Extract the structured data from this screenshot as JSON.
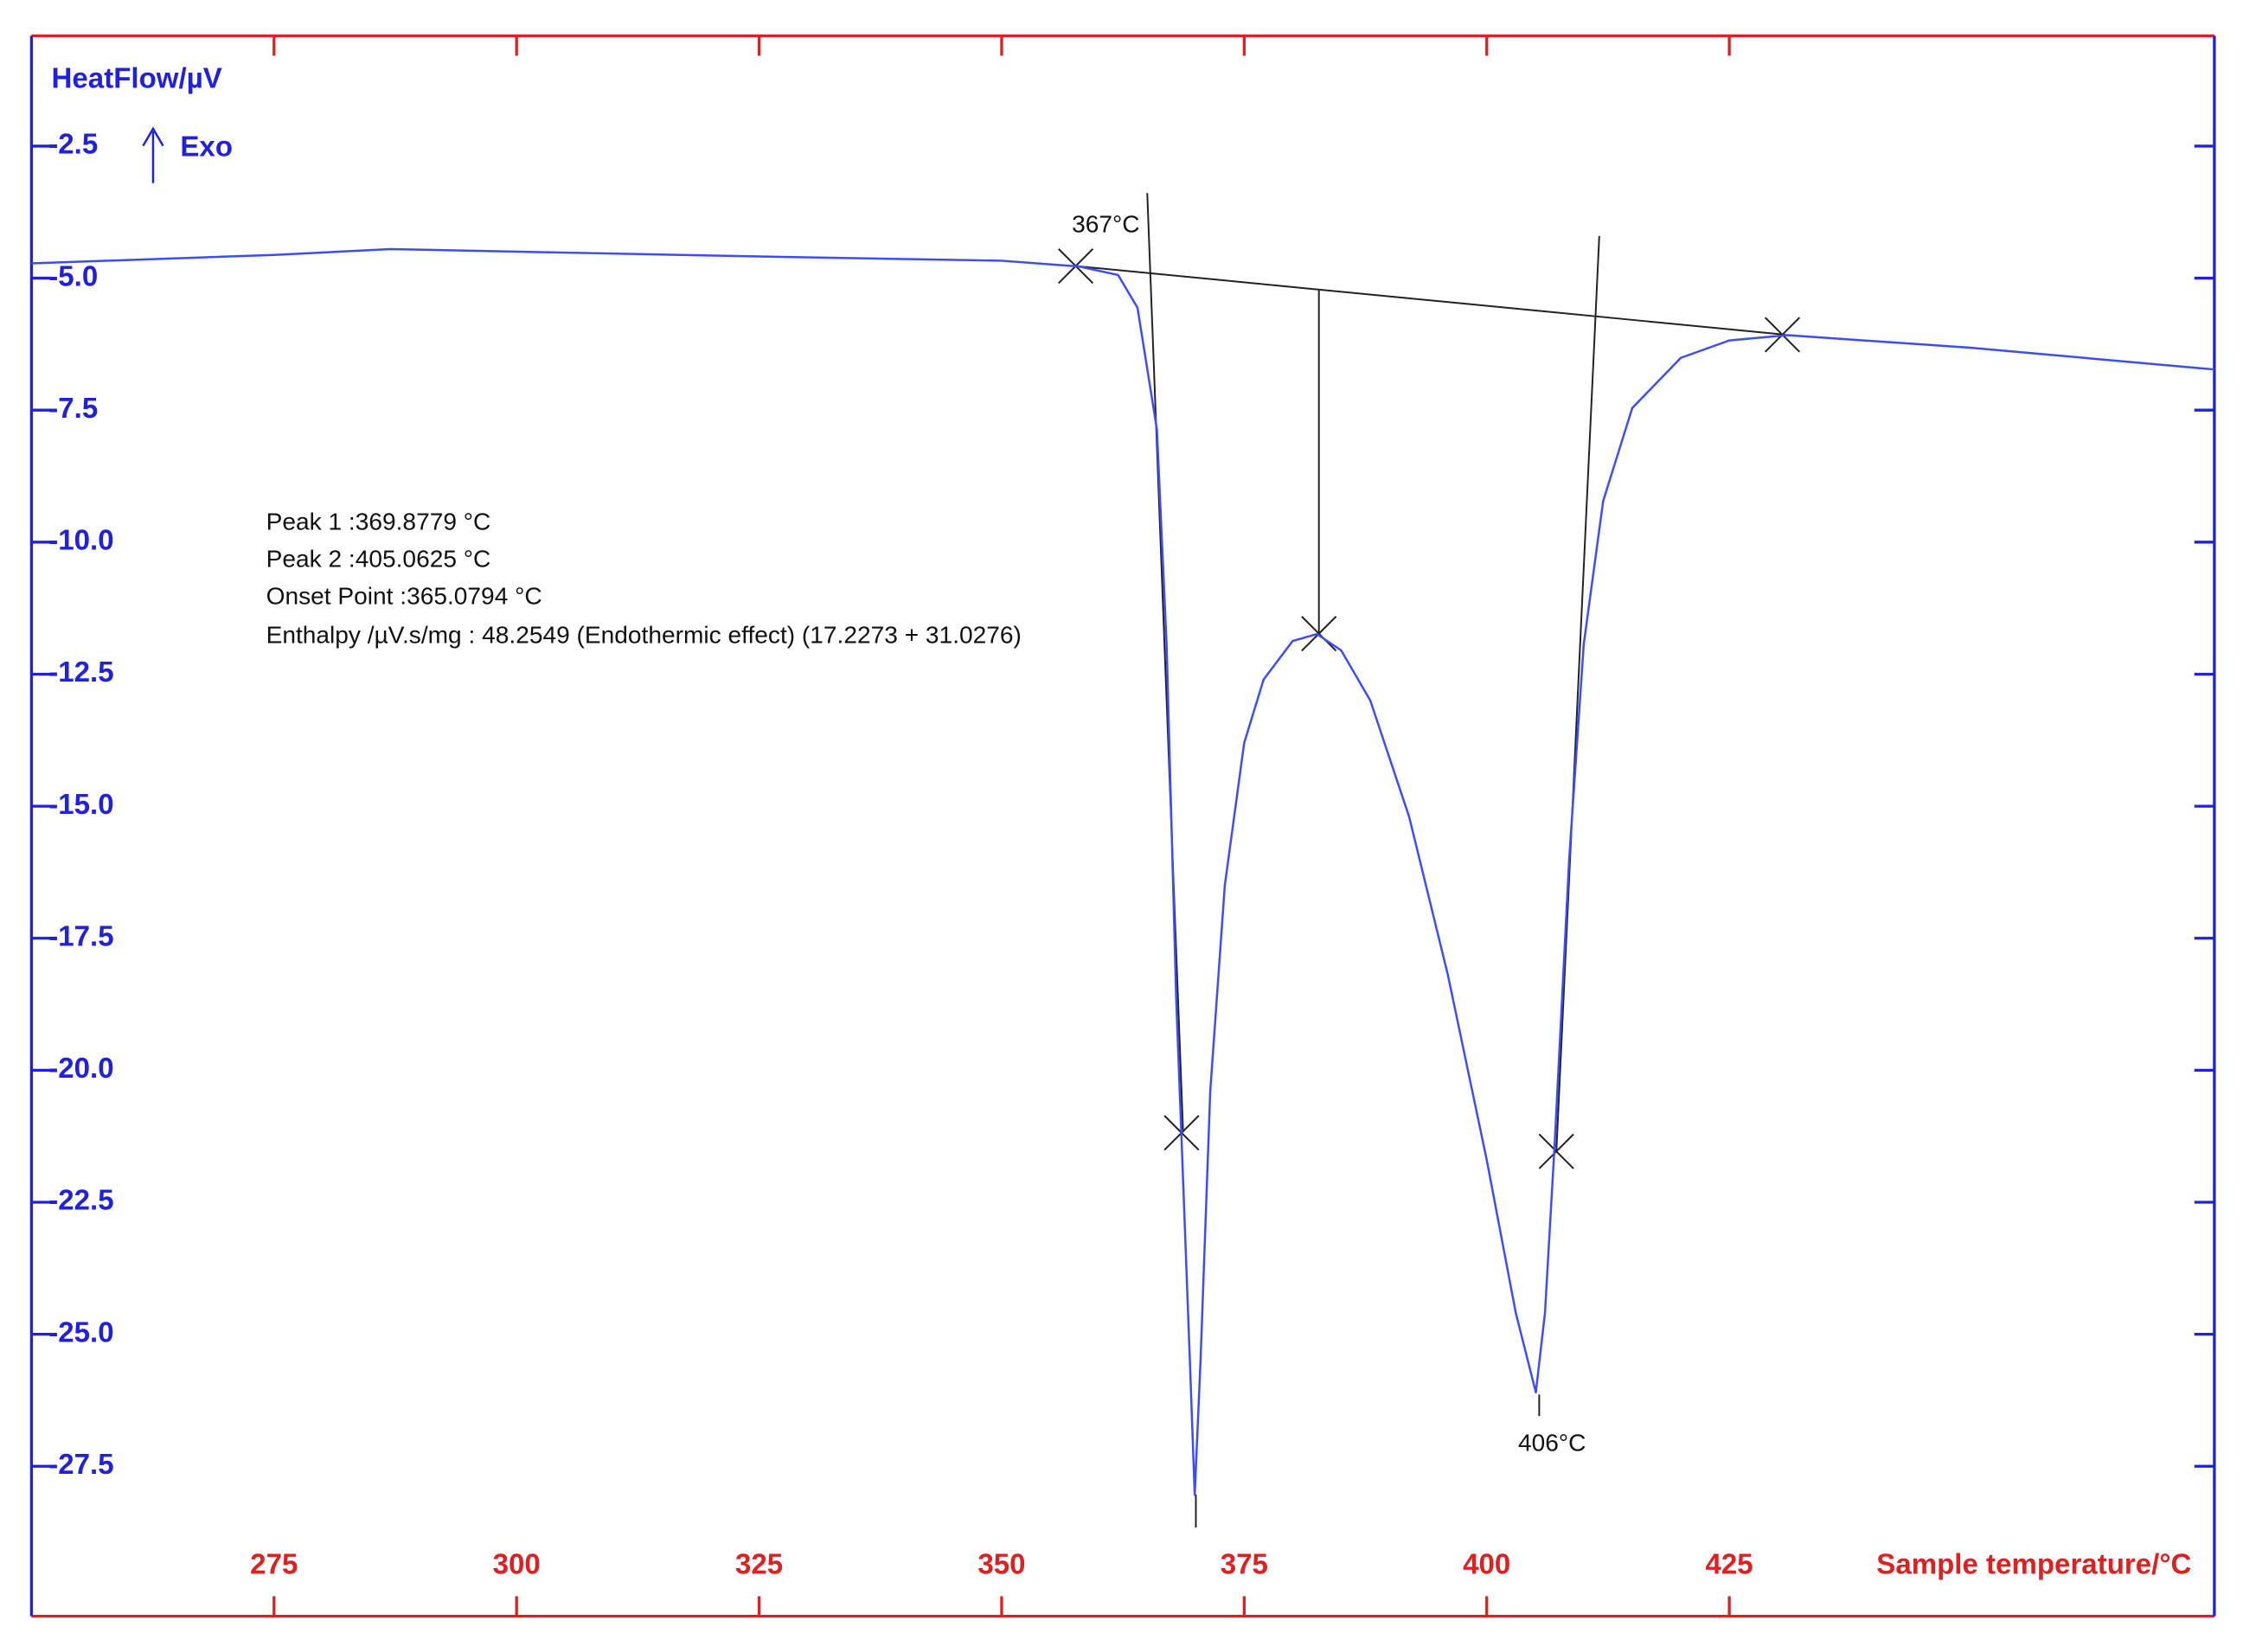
{
  "chart_data": {
    "type": "line",
    "ylabel": "HeatFlow/µV",
    "exo_label": "Exo",
    "xlabel": "Sample temperature/°C",
    "xlim": [
      250,
      475
    ],
    "ylim": [
      -30.34,
      -0.41
    ],
    "xticks": [
      275,
      300,
      325,
      350,
      375,
      400,
      425
    ],
    "yticks": [
      {
        "value": -2.5,
        "label": "-2.5"
      },
      {
        "value": -5,
        "label": "-5.0"
      },
      {
        "value": -7.5,
        "label": "-7.5"
      },
      {
        "value": -10,
        "label": "-10.0"
      },
      {
        "value": -12.5,
        "label": "-12.5"
      },
      {
        "value": -15,
        "label": "-15.0"
      },
      {
        "value": -17.5,
        "label": "-17.5"
      },
      {
        "value": -20,
        "label": "-20.0"
      },
      {
        "value": -22.5,
        "label": "-22.5"
      },
      {
        "value": -25,
        "label": "-25.0"
      },
      {
        "value": -27.5,
        "label": "-27.5"
      }
    ],
    "series": [
      {
        "color": "#3b4cff",
        "x": [
          250,
          275,
          287,
          325,
          350,
          358,
          362,
          364,
          366,
          367,
          368,
          368.5,
          369.4,
          369.9,
          370.5,
          371.5,
          373,
          375,
          377,
          380,
          382.5,
          385,
          388,
          392,
          396,
          400,
          403,
          405.06,
          406,
          407,
          408.5,
          410,
          412,
          415,
          420,
          425,
          431,
          450,
          475
        ],
        "values": [
          -4.72,
          -4.56,
          -4.45,
          -4.59,
          -4.67,
          -4.78,
          -4.94,
          -5.56,
          -7.86,
          -11.93,
          -18.7,
          -21.1,
          -25.5,
          -28.04,
          -25.5,
          -20.4,
          -16.5,
          -13.8,
          -12.6,
          -11.87,
          -11.74,
          -12.05,
          -13.0,
          -15.2,
          -18.2,
          -21.7,
          -24.6,
          -26.1,
          -24.6,
          -21.4,
          -15.99,
          -11.93,
          -9.22,
          -7.46,
          -6.51,
          -6.18,
          -6.08,
          -6.32,
          -6.73
        ]
      }
    ],
    "annotations": [
      "367°C",
      "406°C"
    ],
    "info": [
      "Peak 1 :369.8779 °C",
      "Peak 2 :405.0625 °C",
      "Onset Point :365.0794 °C",
      "Enthalpy /µV.s/mg :  48.2549 (Endothermic effect) (17.2273 + 31.0276)"
    ]
  }
}
